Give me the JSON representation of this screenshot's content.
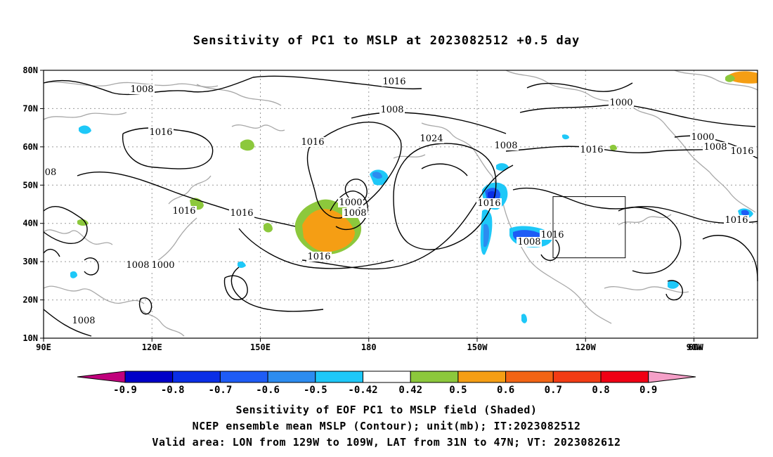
{
  "title": "Sensitivity of PC1 to MSLP at 2023082512 +0.5 day",
  "lat_ticks": [
    "80N",
    "70N",
    "60N",
    "50N",
    "40N",
    "30N",
    "20N",
    "10N"
  ],
  "lon_ticks": [
    "90E",
    "120E",
    "150E",
    "180",
    "150W",
    "120W",
    "90W",
    "60W"
  ],
  "contour_labels": [
    "1008",
    "1016",
    "1000",
    "1016",
    "1008",
    "1016",
    "1000",
    "1000",
    "1008",
    "1016",
    "1016",
    "08",
    "1016",
    "1016",
    "1024",
    "1008",
    "1016",
    "1000",
    "1008",
    "1016",
    "1008",
    "1016",
    "1016",
    "1008",
    "1008",
    "1016"
  ],
  "colorbar": {
    "labels": [
      "-0.9",
      "-0.8",
      "-0.7",
      "-0.6",
      "-0.5",
      "-0.42",
      "0.42",
      "0.5",
      "0.6",
      "0.7",
      "0.8",
      "0.9"
    ],
    "colors": [
      "#c0007c",
      "#0000c8",
      "#0a2ee6",
      "#1e5cf5",
      "#2c8cf0",
      "#1ec8f8",
      "#ffffff",
      "#8cc83c",
      "#f59e14",
      "#f26414",
      "#f23c14",
      "#f00014",
      "#f5a0c8"
    ]
  },
  "captions": [
    "Sensitivity of EOF PC1 to MSLP field (Shaded)",
    "NCEP ensemble mean MSLP (Contour); unit(mb); IT:2023082512",
    "Valid area: LON from 129W to 109W, LAT from 31N to 47N; VT: 2023082612"
  ],
  "valid_area": {
    "lon_min": -129,
    "lon_max": -109,
    "lat_min": 31,
    "lat_max": 47
  }
}
